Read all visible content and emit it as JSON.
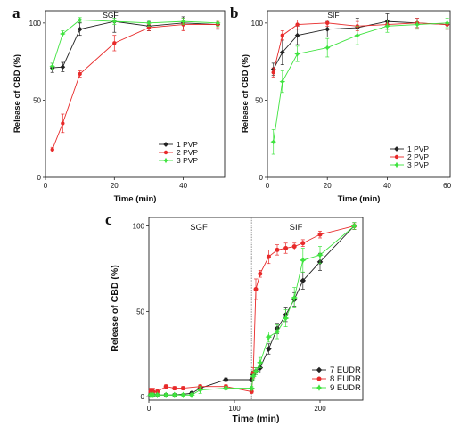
{
  "chart_data": [
    {
      "type": "line",
      "panel": "a",
      "annotation": "SGF",
      "xlabel": "Time (min)",
      "ylabel": "Release of CBD (%)",
      "xlim": [
        0,
        52
      ],
      "ylim": [
        0,
        108
      ],
      "xticks": [
        0,
        20,
        40
      ],
      "yticks": [
        0,
        50,
        100
      ],
      "legend": "bottom-right",
      "series": [
        {
          "name": "1 PVP",
          "color": "#222222",
          "x": [
            2,
            5,
            10,
            20,
            30,
            40,
            50
          ],
          "y": [
            71,
            71.5,
            96,
            101,
            98,
            100,
            99
          ],
          "err": [
            3,
            3,
            4,
            7,
            3,
            4,
            3
          ]
        },
        {
          "name": "2 PVP",
          "color": "#e82a2a",
          "x": [
            2,
            5,
            10,
            20,
            30,
            40,
            50
          ],
          "y": [
            18,
            35,
            67,
            87,
            97,
            99,
            99
          ],
          "err": [
            1.5,
            6,
            2,
            5,
            2,
            4,
            2
          ]
        },
        {
          "name": "3 PVP",
          "color": "#3ee33e",
          "x": [
            2,
            5,
            10,
            20,
            30,
            40,
            50
          ],
          "y": [
            72,
            93,
            102,
            101,
            100,
            101,
            100
          ],
          "err": [
            2,
            2,
            1.5,
            2,
            2,
            2,
            2
          ]
        }
      ]
    },
    {
      "type": "line",
      "panel": "b",
      "annotation": "SIF",
      "xlabel": "Time (min)",
      "ylabel": "Release of CBD (%)",
      "xlim": [
        0,
        61
      ],
      "ylim": [
        0,
        108
      ],
      "xticks": [
        0,
        20,
        40,
        60
      ],
      "yticks": [
        0,
        50,
        100
      ],
      "legend": "bottom-right",
      "series": [
        {
          "name": "1 PVP",
          "color": "#222222",
          "x": [
            2,
            5,
            10,
            20,
            30,
            40,
            50,
            60
          ],
          "y": [
            70,
            81,
            92,
            96,
            97,
            101,
            100,
            99
          ],
          "err": [
            4,
            8,
            6,
            5,
            6,
            5,
            3,
            3
          ]
        },
        {
          "name": "2 PVP",
          "color": "#e82a2a",
          "x": [
            2,
            5,
            10,
            20,
            30,
            40,
            50,
            60
          ],
          "y": [
            68,
            92,
            99,
            100,
            98,
            99,
            100,
            99
          ],
          "err": [
            3,
            3,
            3,
            2,
            3,
            3,
            3,
            3
          ]
        },
        {
          "name": "3 PVP",
          "color": "#3ee33e",
          "x": [
            2,
            5,
            10,
            20,
            30,
            40,
            50,
            60
          ],
          "y": [
            23,
            62,
            80,
            84,
            92,
            98,
            99,
            100
          ],
          "err": [
            8,
            7,
            5,
            6,
            6,
            4,
            3,
            3
          ]
        }
      ]
    },
    {
      "type": "line",
      "panel": "c",
      "annotations": [
        "SGF",
        "SIF"
      ],
      "phase_change_x": 120,
      "xlabel": "Time (min)",
      "ylabel": "Release of CBD (%)",
      "xlim": [
        0,
        250
      ],
      "ylim": [
        -2,
        105
      ],
      "xticks": [
        0,
        100,
        200
      ],
      "yticks": [
        0,
        50,
        100
      ],
      "legend": "bottom-right",
      "series": [
        {
          "name": "7 EUDR",
          "color": "#222222",
          "x": [
            2,
            5,
            10,
            20,
            30,
            50,
            60,
            90,
            120,
            122,
            125,
            130,
            140,
            150,
            160,
            170,
            180,
            200,
            240
          ],
          "y": [
            1,
            1,
            1,
            1,
            1,
            2,
            5,
            10,
            10,
            13,
            15,
            17,
            28,
            40,
            48,
            57,
            68,
            79,
            100
          ],
          "err": [
            1,
            1,
            1,
            1,
            1,
            1,
            1,
            1,
            1,
            2,
            2,
            3,
            3,
            3,
            4,
            4,
            5,
            5,
            2
          ]
        },
        {
          "name": "8 EUDR",
          "color": "#e82a2a",
          "x": [
            2,
            5,
            10,
            20,
            30,
            40,
            60,
            90,
            120,
            122,
            125,
            130,
            140,
            150,
            160,
            170,
            180,
            200,
            240
          ],
          "y": [
            3,
            3,
            3,
            6,
            5,
            5,
            6,
            6,
            3,
            14,
            63,
            72,
            82,
            86,
            87,
            88,
            90,
            95,
            100
          ],
          "err": [
            2,
            2,
            1,
            1,
            1,
            1,
            1,
            1,
            1,
            3,
            6,
            2,
            4,
            3,
            3,
            2,
            2,
            2,
            2
          ]
        },
        {
          "name": "9 EUDR",
          "color": "#3ee33e",
          "x": [
            2,
            5,
            10,
            20,
            30,
            40,
            50,
            60,
            90,
            120,
            122,
            125,
            130,
            140,
            150,
            160,
            170,
            180,
            200,
            240
          ],
          "y": [
            1,
            1,
            1,
            1,
            1,
            1,
            1,
            4,
            5,
            5,
            12,
            15,
            20,
            35,
            38,
            46,
            58,
            80,
            83,
            100
          ],
          "err": [
            1,
            1,
            1,
            1,
            1,
            1,
            1,
            2,
            1,
            1,
            2,
            2,
            3,
            3,
            4,
            5,
            6,
            7,
            5,
            2
          ]
        }
      ]
    }
  ]
}
